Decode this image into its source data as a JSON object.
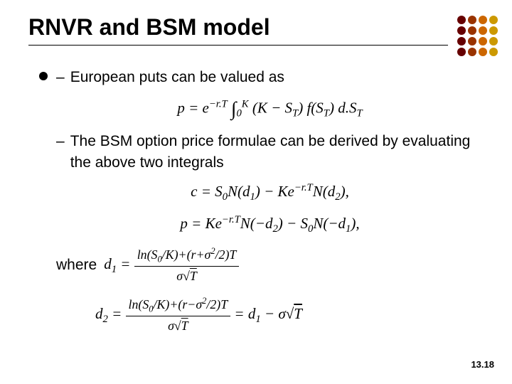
{
  "title": "RNVR and BSM model",
  "dots": {
    "colors": [
      "#660000",
      "#993300",
      "#cc6600",
      "#cc9900",
      "#660000",
      "#993300",
      "#cc6600",
      "#cc9900",
      "#660000",
      "#993300",
      "#cc6600",
      "#cc9900",
      "#660000",
      "#993300",
      "#cc6600",
      "#cc9900"
    ]
  },
  "content": {
    "sub1": "European puts can be valued as",
    "formula1_html": "<i>p</i> = <i>e</i><sup>&minus;<i>r</i>.<i>T</i></sup> <span class='integral'>&#8747;</span><sub>0</sub><sup><i>K</i></sup> (<i>K</i> &minus; <i>S</i><sub><i>T</i></sub>) <i>f</i>(<i>S</i><sub><i>T</i></sub>) <i>d</i>.<i>S</i><sub><i>T</i></sub>",
    "sub2": "The BSM option price formulae can be derived by evaluating the above two integrals",
    "formula2_html": "<i>c</i> = <i>S</i><sub>0</sub><i>N</i>(<i>d</i><sub>1</sub>) &minus; <i>Ke</i><sup>&minus;<i>r</i>.<i>T</i></sup><i>N</i>(<i>d</i><sub>2</sub>),",
    "formula3_html": "<i>p</i> = <i>Ke</i><sup>&minus;<i>r</i>.<i>T</i></sup><i>N</i>(&minus;<i>d</i><sub>2</sub>) &minus; <i>S</i><sub>0</sub><i>N</i>(&minus;<i>d</i><sub>1</sub>),",
    "where_label": "where",
    "formula4_html": "<i>d</i><sub>1</sub> = <span class='frac'><span class='num'>ln(<i>S</i><sub>0</sub>/<i>K</i>)+(<i>r</i>+<i>&sigma;</i><sup>2</sup>/2)<i>T</i></span><span class='den'><i>&sigma;</i>&radic;<span style='text-decoration:overline'><i>T</i></span></span></span>",
    "formula5_html": "<i>d</i><sub>2</sub> = <span class='frac'><span class='num'>ln(<i>S</i><sub>0</sub>/<i>K</i>)+(<i>r</i>&minus;<i>&sigma;</i><sup>2</sup>/2)<i>T</i></span><span class='den'><i>&sigma;</i>&radic;<span style='text-decoration:overline'><i>T</i></span></span></span> = <i>d</i><sub>1</sub> &minus; <i>&sigma;</i>&radic;<span style='text-decoration:overline'><i>T</i></span>"
  },
  "page_number": "13.18",
  "styles": {
    "title_fontsize": 32,
    "body_fontsize": 21,
    "background": "#ffffff",
    "text_color": "#000000"
  }
}
